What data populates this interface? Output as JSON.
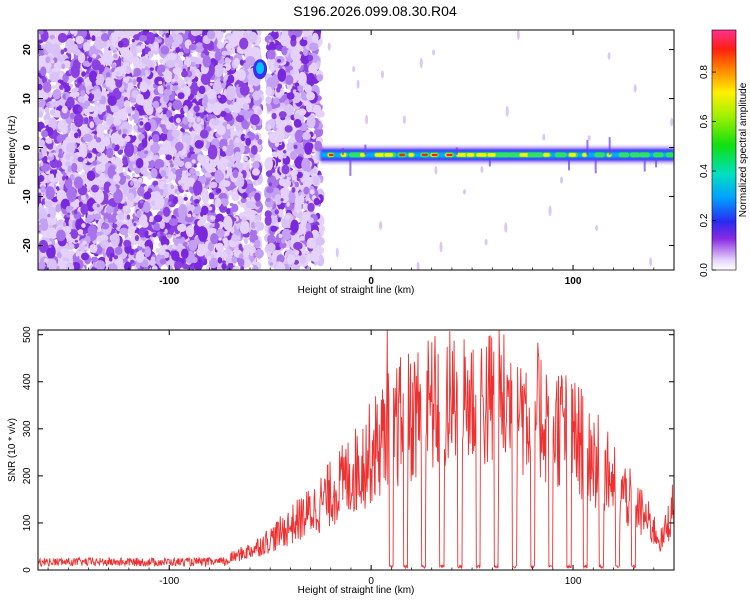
{
  "title": "S196.2026.099.08.30.R04",
  "chart_data": [
    {
      "type": "heatmap",
      "xlabel": "Height of straight line (km)",
      "ylabel": "Frequency (Hz)",
      "xlim": [
        -165,
        150
      ],
      "ylim": [
        -25,
        24
      ],
      "x_ticks": [
        "-100",
        "0",
        "100"
      ],
      "y_ticks": [
        "-20",
        "-10",
        "0",
        "10",
        "20"
      ],
      "colorbar": {
        "label": "Normalized spectral amplitude",
        "range": [
          0,
          0.97
        ],
        "ticks": [
          "0.0",
          "0.2",
          "0.4",
          "0.6",
          "0.8"
        ]
      },
      "regions": [
        {
          "kind": "noise",
          "x": [
            -165,
            -55
          ]
        },
        {
          "kind": "noise",
          "x": [
            -51,
            -25
          ]
        },
        {
          "kind": "signal_ridge",
          "x": [
            -25,
            150
          ],
          "frequency_hz": -1.5
        },
        {
          "kind": "hot_spot",
          "x": -55,
          "frequency_hz": 16
        }
      ]
    },
    {
      "type": "line",
      "xlabel": "Height of straight line (km)",
      "ylabel": "SNR (10 * v/v)",
      "xlim": [
        -165,
        150
      ],
      "ylim": [
        0,
        510
      ],
      "x_ticks": [
        "-100",
        "0",
        "100"
      ],
      "y_ticks": [
        "0",
        "100",
        "200",
        "300",
        "400",
        "500"
      ],
      "series_color": "#ee3030",
      "envelope": {
        "x": [
          -165,
          -80,
          -68,
          -58,
          -48,
          -38,
          -28,
          -18,
          -8,
          0,
          8,
          16,
          24,
          32,
          40,
          48,
          56,
          64,
          72,
          80,
          88,
          96,
          104,
          112,
          120,
          128,
          136,
          144,
          150
        ],
        "y": [
          15,
          18,
          28,
          45,
          70,
          100,
          130,
          170,
          210,
          250,
          290,
          320,
          340,
          350,
          355,
          360,
          360,
          355,
          350,
          340,
          320,
          300,
          270,
          230,
          190,
          150,
          110,
          60,
          140
        ]
      },
      "dropouts_x": [
        10,
        17,
        26,
        35,
        44,
        53,
        62,
        71,
        80,
        89,
        98,
        106,
        114,
        122,
        130
      ],
      "spike": {
        "x": 8,
        "y": 510
      }
    }
  ]
}
